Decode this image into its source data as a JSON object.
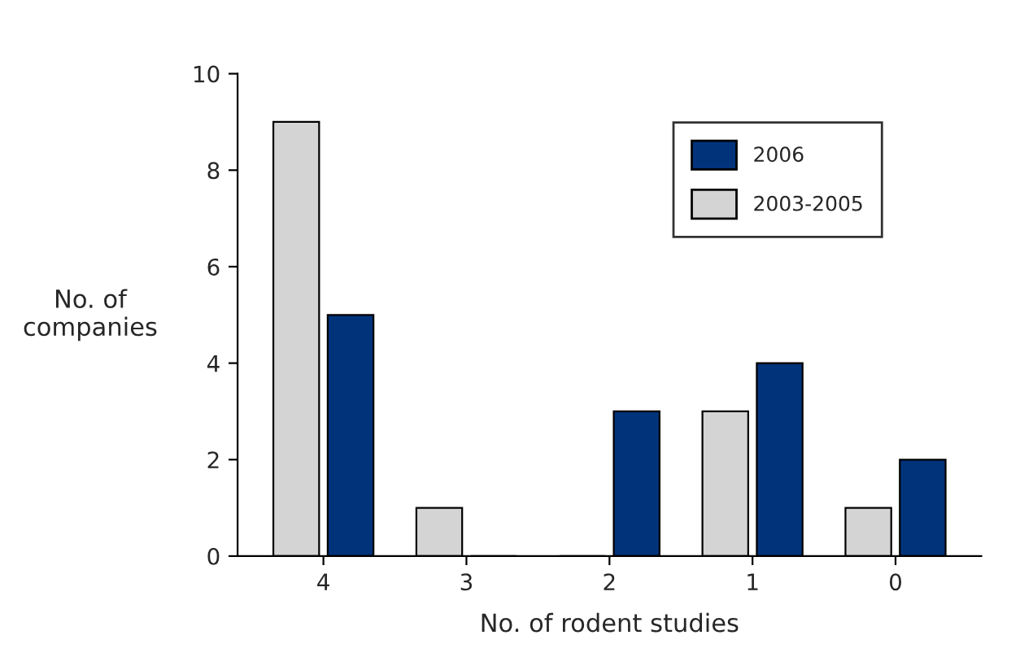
{
  "chart_data": {
    "type": "bar",
    "xlabel": "No. of rodent studies",
    "ylabel": "No. of\ncompanies",
    "categories": [
      "4",
      "3",
      "2",
      "1",
      "0"
    ],
    "series": [
      {
        "name": "2006",
        "color": "#00337a",
        "values": [
          5,
          0,
          3,
          4,
          2
        ]
      },
      {
        "name": "2003-2005",
        "color": "#d4d4d4",
        "values": [
          9,
          1,
          0,
          3,
          1
        ]
      }
    ],
    "ylim": [
      0,
      10
    ],
    "yticks": [
      0,
      2,
      4,
      6,
      8,
      10
    ],
    "grid": false,
    "legend": "top right"
  }
}
